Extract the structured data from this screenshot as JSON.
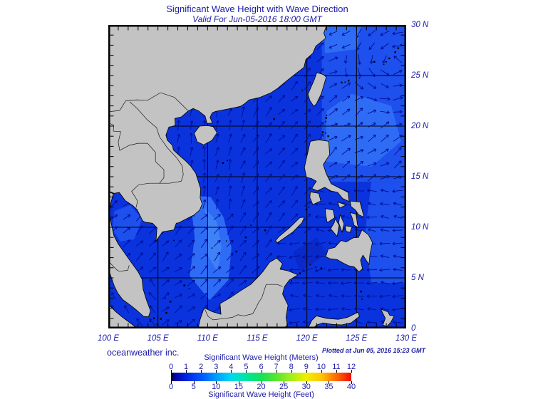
{
  "title": "Significant Wave Height with Wave Direction",
  "subtitle": "Valid For Jun-05-2016 18:00 GMT",
  "credit": "oceanweather inc.",
  "plotted_note": "Plotted at Jun 05, 2016 15:23 GMT",
  "axes": {
    "lat_labels": [
      {
        "text": "30 N",
        "value": 30
      },
      {
        "text": "25 N",
        "value": 25
      },
      {
        "text": "20 N",
        "value": 20
      },
      {
        "text": "15 N",
        "value": 15
      },
      {
        "text": "10 N",
        "value": 10
      },
      {
        "text": "5 N",
        "value": 5
      },
      {
        "text": "0",
        "value": 0
      }
    ],
    "lon_labels": [
      {
        "text": "100 E",
        "value": 100
      },
      {
        "text": "105 E",
        "value": 105
      },
      {
        "text": "110 E",
        "value": 110
      },
      {
        "text": "115 E",
        "value": 115
      },
      {
        "text": "120 E",
        "value": 120
      },
      {
        "text": "125 E",
        "value": 125
      },
      {
        "text": "130 E",
        "value": 130
      }
    ],
    "lon_range": [
      100,
      130
    ],
    "lat_range": [
      0,
      30
    ],
    "grid_interval_deg": 5
  },
  "legend": {
    "meters_title": "Significant Wave Height (Meters)",
    "feet_title": "Significant Wave Height (Feet)",
    "meters_ticks": [
      "0",
      "1",
      "2",
      "3",
      "4",
      "5",
      "6",
      "7",
      "8",
      "9",
      "10",
      "11",
      "12"
    ],
    "feet_ticks": [
      "0",
      "5",
      "10",
      "15",
      "20",
      "25",
      "30",
      "35",
      "40"
    ],
    "gradient": [
      {
        "p": 0.0,
        "c": "#000000"
      },
      {
        "p": 0.02,
        "c": "#0000a8"
      },
      {
        "p": 0.083,
        "c": "#0023dd"
      },
      {
        "p": 0.167,
        "c": "#0055ff"
      },
      {
        "p": 0.25,
        "c": "#009dff"
      },
      {
        "p": 0.333,
        "c": "#00d8f0"
      },
      {
        "p": 0.417,
        "c": "#00e6a0"
      },
      {
        "p": 0.5,
        "c": "#16e05a"
      },
      {
        "p": 0.583,
        "c": "#57e62e"
      },
      {
        "p": 0.667,
        "c": "#a4ee1c"
      },
      {
        "p": 0.75,
        "c": "#eef000"
      },
      {
        "p": 0.833,
        "c": "#ffc400"
      },
      {
        "p": 0.917,
        "c": "#ff6a00"
      },
      {
        "p": 1.0,
        "c": "#ef0e00"
      }
    ]
  },
  "colors": {
    "text": "#1b1ba8",
    "land": "#c3c3c3",
    "coast": "#000000",
    "grid": "#000000",
    "arrow": "#000d96",
    "sea_base": "#0a33dd",
    "sea_mid": "#1d50ec",
    "sea_light": "#2f6cf5",
    "sea_lighter": "#3f82f8",
    "sea_dark": "#0929c8"
  }
}
